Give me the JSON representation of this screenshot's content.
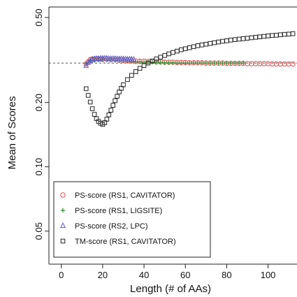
{
  "chart_data": {
    "type": "scatter",
    "title": "",
    "xlabel": "Length (# of AAs)",
    "ylabel": "Mean of Scores",
    "xlim": [
      -6,
      114
    ],
    "ylim": [
      0.035,
      0.56
    ],
    "y_scale": "log",
    "x_ticks": [
      0,
      20,
      40,
      60,
      80,
      100
    ],
    "x_tick_labels": [
      "0",
      "20",
      "40",
      "60",
      "80",
      "100"
    ],
    "y_ticks": [
      0.05,
      0.1,
      0.2,
      0.5
    ],
    "y_tick_labels": [
      "0.05",
      "0.10",
      "0.20",
      "0.50"
    ],
    "grid": false,
    "reference_line": {
      "y": 0.306,
      "style": "dashed"
    },
    "legend_position": "bottom-left",
    "series": [
      {
        "name": "PS-score (RS1, CAVITATOR)",
        "marker": "circle",
        "color": "#e05050",
        "x": [
          12,
          13,
          14,
          15,
          16,
          17,
          18,
          19,
          20,
          22,
          24,
          26,
          28,
          30,
          32,
          34,
          36,
          38,
          40,
          42,
          44,
          46,
          48,
          50,
          52,
          54,
          56,
          58,
          60,
          62,
          64,
          66,
          68,
          70,
          72,
          74,
          76,
          78,
          80,
          82,
          84,
          86,
          88,
          90,
          92,
          94,
          96,
          98,
          100,
          102,
          104,
          106,
          108,
          110,
          112,
          114
        ],
        "y": [
          0.303,
          0.31,
          0.318,
          0.32,
          0.318,
          0.321,
          0.319,
          0.32,
          0.318,
          0.319,
          0.317,
          0.318,
          0.316,
          0.315,
          0.315,
          0.314,
          0.313,
          0.312,
          0.312,
          0.311,
          0.311,
          0.31,
          0.31,
          0.309,
          0.309,
          0.309,
          0.308,
          0.308,
          0.308,
          0.307,
          0.307,
          0.307,
          0.307,
          0.306,
          0.306,
          0.306,
          0.306,
          0.306,
          0.305,
          0.305,
          0.305,
          0.305,
          0.305,
          0.304,
          0.304,
          0.304,
          0.304,
          0.304,
          0.304,
          0.303,
          0.303,
          0.303,
          0.303,
          0.303,
          0.303,
          0.303
        ]
      },
      {
        "name": "PS-score (RS1, LIGSITE)",
        "marker": "plus",
        "color": "#2e8b2e",
        "x": [
          12,
          14,
          16,
          18,
          20,
          22,
          24,
          26,
          28,
          30,
          32,
          34,
          36,
          38,
          40,
          42,
          44,
          46,
          48,
          50,
          52,
          54,
          56,
          58,
          60,
          62,
          64,
          66,
          68,
          70,
          72,
          74,
          76,
          78,
          80,
          82,
          84,
          86,
          88
        ],
        "y": [
          0.305,
          0.313,
          0.315,
          0.316,
          0.317,
          0.316,
          0.316,
          0.315,
          0.314,
          0.313,
          0.312,
          0.311,
          0.31,
          0.31,
          0.309,
          0.309,
          0.309,
          0.308,
          0.308,
          0.307,
          0.307,
          0.307,
          0.306,
          0.306,
          0.306,
          0.306,
          0.306,
          0.306,
          0.306,
          0.306,
          0.306,
          0.306,
          0.306,
          0.306,
          0.306,
          0.306,
          0.306,
          0.306,
          0.306
        ]
      },
      {
        "name": "PS-score (RS2, LPC)",
        "marker": "triangle",
        "color": "#5a5ac8",
        "x": [
          12,
          13,
          14,
          15,
          16,
          17,
          18,
          19,
          20,
          21,
          22,
          23,
          24,
          25,
          26,
          27,
          28,
          29,
          30,
          31,
          32,
          33,
          34,
          35
        ],
        "y": [
          0.298,
          0.308,
          0.314,
          0.318,
          0.32,
          0.321,
          0.321,
          0.322,
          0.322,
          0.322,
          0.322,
          0.321,
          0.321,
          0.321,
          0.321,
          0.32,
          0.32,
          0.32,
          0.32,
          0.319,
          0.319,
          0.319,
          0.319,
          0.318
        ]
      },
      {
        "name": "TM-score (RS1, CAVITATOR)",
        "marker": "square",
        "color": "#222222",
        "x": [
          12,
          13,
          14,
          15,
          16,
          17,
          18,
          19,
          20,
          21,
          22,
          23,
          24,
          25,
          26,
          27,
          28,
          29,
          30,
          32,
          34,
          36,
          38,
          40,
          42,
          44,
          46,
          48,
          50,
          52,
          54,
          56,
          58,
          60,
          62,
          64,
          66,
          68,
          70,
          72,
          74,
          76,
          78,
          80,
          82,
          84,
          86,
          88,
          90,
          92,
          94,
          96,
          98,
          100,
          102,
          104,
          106,
          108,
          110,
          112,
          114
        ],
        "y": [
          0.232,
          0.216,
          0.201,
          0.187,
          0.176,
          0.168,
          0.163,
          0.16,
          0.158,
          0.161,
          0.167,
          0.175,
          0.184,
          0.194,
          0.204,
          0.214,
          0.224,
          0.233,
          0.242,
          0.256,
          0.268,
          0.279,
          0.289,
          0.298,
          0.306,
          0.313,
          0.32,
          0.326,
          0.332,
          0.338,
          0.343,
          0.348,
          0.353,
          0.357,
          0.361,
          0.365,
          0.369,
          0.372,
          0.375,
          0.378,
          0.381,
          0.384,
          0.387,
          0.389,
          0.392,
          0.394,
          0.396,
          0.398,
          0.4,
          0.402,
          0.404,
          0.406,
          0.408,
          0.41,
          0.412,
          0.413,
          0.415,
          0.417,
          0.418,
          0.42,
          0.421
        ]
      }
    ]
  }
}
